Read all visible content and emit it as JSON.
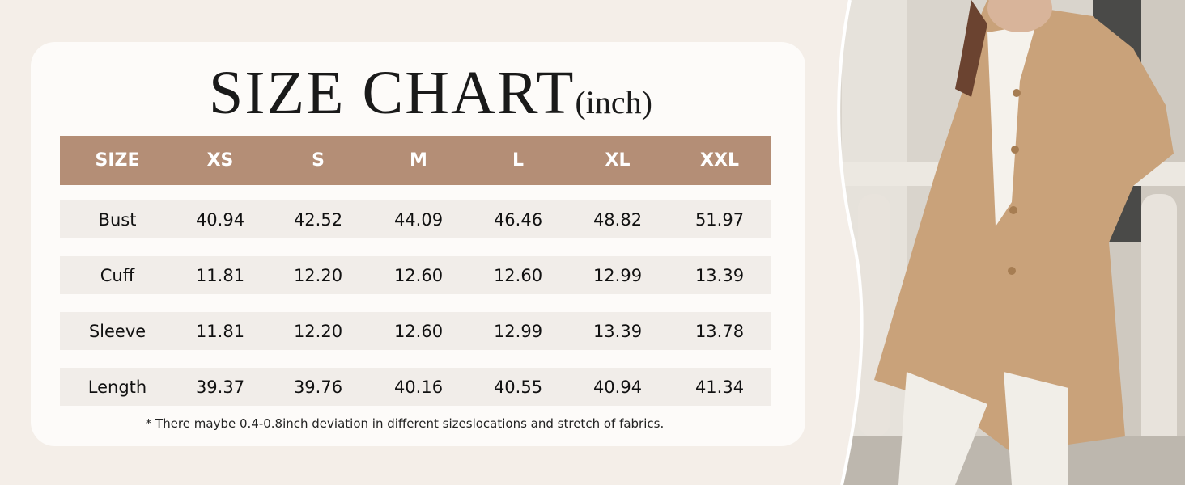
{
  "title": {
    "main": "SIZE CHART",
    "unit": "(inch)"
  },
  "table": {
    "headers": [
      "SIZE",
      "XS",
      "S",
      "M",
      "L",
      "XL",
      "XXL"
    ],
    "rows": [
      {
        "label": "Bust",
        "values": [
          "40.94",
          "42.52",
          "44.09",
          "46.46",
          "48.82",
          "51.97"
        ]
      },
      {
        "label": "Cuff",
        "values": [
          "11.81",
          "12.20",
          "12.60",
          "12.60",
          "12.99",
          "13.39"
        ]
      },
      {
        "label": "Sleeve",
        "values": [
          "11.81",
          "12.20",
          "12.60",
          "12.99",
          "13.39",
          "13.78"
        ]
      },
      {
        "label": "Length",
        "values": [
          "39.37",
          "39.76",
          "40.16",
          "40.55",
          "40.94",
          "41.34"
        ]
      }
    ]
  },
  "footnote": "* There maybe 0.4-0.8inch deviation in different sizeslocations and stretch of fabrics.",
  "colors": {
    "header": "#b48e76",
    "row": "#f1ede9",
    "card": "#fdfbf9",
    "background": "#f4eee8",
    "coat": "#c9a27a"
  }
}
